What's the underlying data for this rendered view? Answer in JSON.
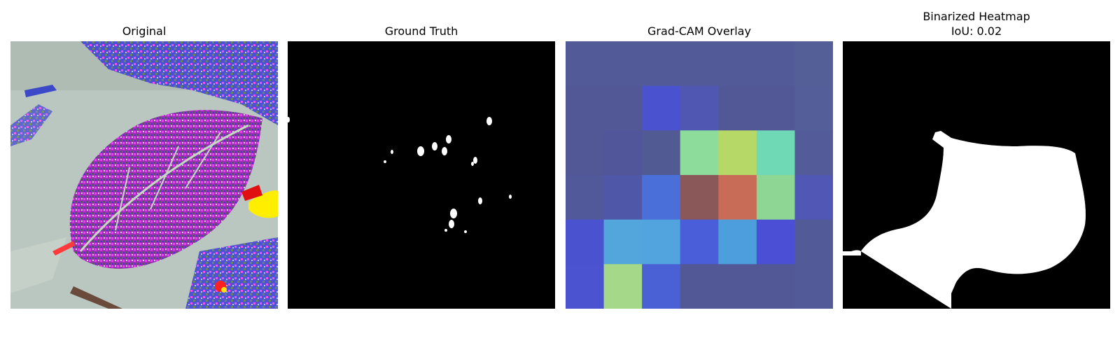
{
  "panels": [
    {
      "title": "Original"
    },
    {
      "title": "Ground Truth"
    },
    {
      "title": "Grad-CAM Overlay"
    },
    {
      "title": "Binarized Heatmap",
      "subtitle": "IoU: 0.02"
    }
  ],
  "colors": {
    "background": "#ffffff",
    "mask_background": "#000000",
    "mask_foreground": "#ffffff"
  },
  "gradcam_grid": [
    [
      "#525b98",
      "#525b98",
      "#525b98",
      "#525b98",
      "#525b98",
      "#525b98",
      "#545f98"
    ],
    [
      "#525896",
      "#525896",
      "#4b52d0",
      "#5057b2",
      "#525896",
      "#525896",
      "#545e98"
    ],
    [
      "#525896",
      "#51569a",
      "#525a93",
      "#8ddc9b",
      "#b6d866",
      "#6fd9b5",
      "#535b98"
    ],
    [
      "#52599b",
      "#4f57a8",
      "#4a6fd8",
      "#8a5858",
      "#c96c57",
      "#8dd693",
      "#5057b4"
    ],
    [
      "#4b52d0",
      "#53a6dc",
      "#51a4de",
      "#4a5ed9",
      "#4c9fdc",
      "#4b4fd6",
      "#535a98"
    ],
    [
      "#4b53d1",
      "#a5d888",
      "#4a61d6",
      "#525896",
      "#525896",
      "#525896",
      "#535a98"
    ]
  ]
}
